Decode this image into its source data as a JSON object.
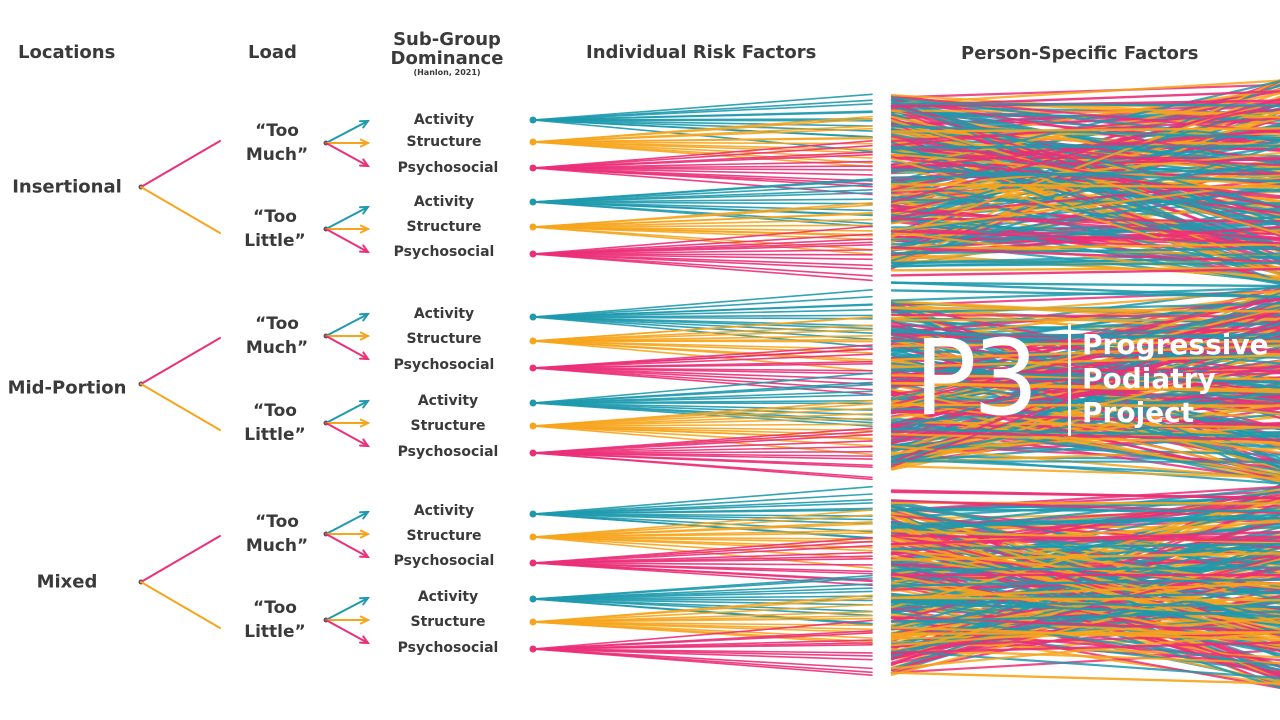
{
  "colors": {
    "teal": "#1e9aae",
    "orange": "#f7a51c",
    "pink": "#ec2f78",
    "text": "#3a3a3a"
  },
  "headers": {
    "locations": "Locations",
    "load": "Load",
    "subgroup_line1": "Sub-Group",
    "subgroup_line2": "Dominance",
    "subgroup_cite": "(Hanlon, 2021)",
    "risk_factors": "Individual Risk Factors",
    "person_factors": "Person-Specific Factors"
  },
  "locations": [
    "Insertional",
    "Mid-Portion",
    "Mixed"
  ],
  "loads": [
    {
      "line1": "“Too",
      "line2": "Much”"
    },
    {
      "line1": "“Too",
      "line2": "Little”"
    }
  ],
  "subgroups": [
    "Activity",
    "Structure",
    "Psychosocial"
  ],
  "logo": {
    "mark": "P3",
    "line1": "Progressive",
    "line2": "Podiatry",
    "line3": "Project"
  }
}
